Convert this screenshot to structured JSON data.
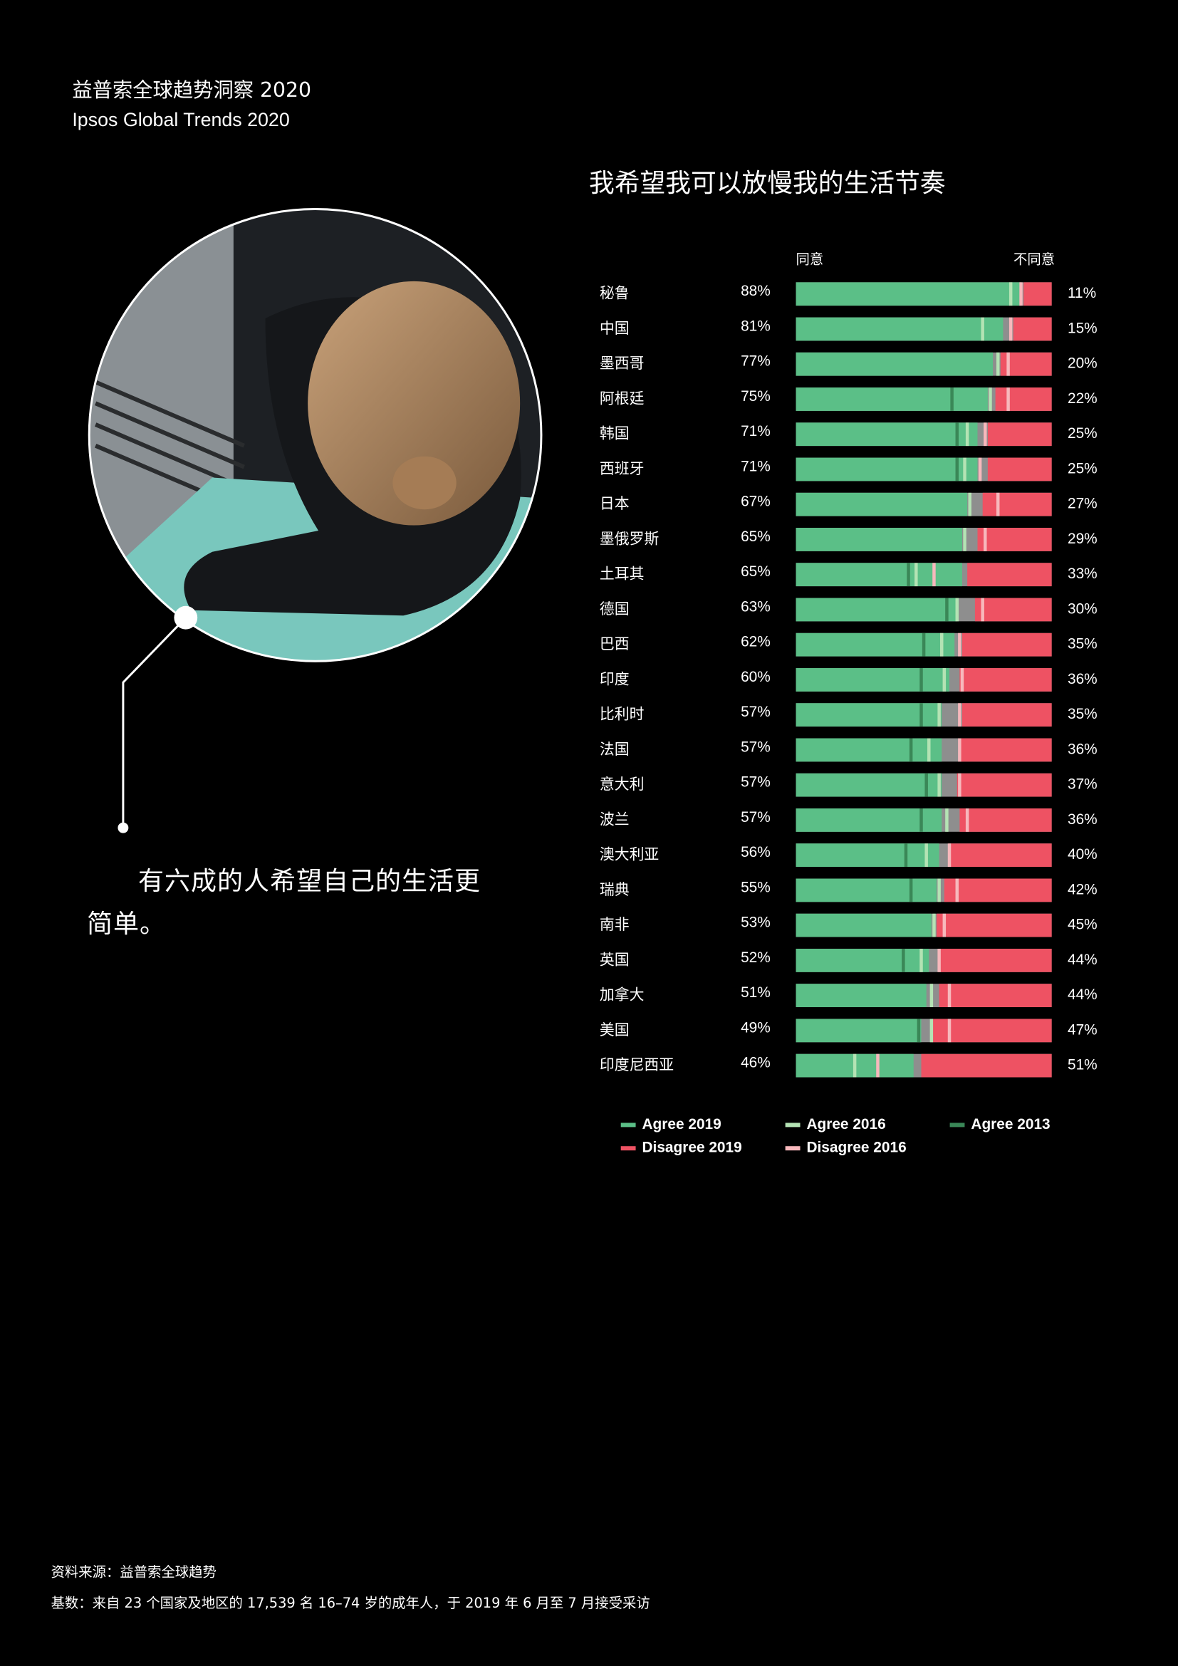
{
  "header": {
    "title": "益普索全球趋势洞察 2020",
    "subtitle": "Ipsos Global Trends 2020"
  },
  "quote": "有六成的人希望自己的生活更简单。",
  "footer": {
    "source": "资料来源：益普索全球趋势",
    "base": "基数：来自 23 个国家及地区的 17,539 名 16–74 岁的成年人，于 2019 年 6 月至 7 月接受采访"
  },
  "chart_data": {
    "type": "bar",
    "orientation": "horizontal",
    "title": "我希望我可以放慢我的生活节奏",
    "agree_label": "同意",
    "disagree_label": "不同意",
    "xlim": [
      0,
      100
    ],
    "categories": [
      "秘鲁",
      "中国",
      "墨西哥",
      "阿根廷",
      "韩国",
      "西班牙",
      "日本",
      "墨俄罗斯",
      "土耳其",
      "德国",
      "巴西",
      "印度",
      "比利时",
      "法国",
      "意大利",
      "波兰",
      "澳大利亚",
      "瑞典",
      "南非",
      "英国",
      "加拿大",
      "美国",
      "印度尼西亚"
    ],
    "series": [
      {
        "name": "Agree 2019",
        "color": "#5bbf87",
        "side": "left",
        "mark": "bar",
        "values": [
          88,
          81,
          77,
          75,
          71,
          71,
          67,
          65,
          65,
          63,
          62,
          60,
          57,
          57,
          57,
          57,
          56,
          55,
          53,
          52,
          51,
          49,
          46
        ],
        "value_labels": [
          "88%",
          "81%",
          "77%",
          "75%",
          "71%",
          "71%",
          "67%",
          "65%",
          "65%",
          "63%",
          "62%",
          "60%",
          "57%",
          "57%",
          "57%",
          "57%",
          "56%",
          "55%",
          "53%",
          "52%",
          "51%",
          "49%",
          "46%"
        ]
      },
      {
        "name": "Agree 2016",
        "color": "#b4e3b4",
        "side": "left",
        "mark": "tick",
        "values": [
          84,
          73,
          79,
          76,
          67,
          66,
          68,
          66,
          47,
          63,
          57,
          58,
          56,
          52,
          56,
          59,
          51,
          56,
          54,
          49,
          53,
          53,
          23
        ]
      },
      {
        "name": "Agree 2013",
        "color": "#3a8757",
        "side": "left",
        "mark": "tick",
        "values": [
          null,
          null,
          null,
          61,
          63,
          63,
          null,
          null,
          44,
          59,
          50,
          49,
          49,
          45,
          51,
          49,
          43,
          45,
          null,
          42,
          null,
          48,
          null
        ]
      },
      {
        "name": "Disagree 2019",
        "color": "#ee5263",
        "side": "right",
        "mark": "bar",
        "values": [
          11,
          15,
          20,
          22,
          25,
          25,
          27,
          29,
          33,
          30,
          35,
          36,
          35,
          36,
          37,
          36,
          40,
          42,
          45,
          44,
          44,
          47,
          51
        ],
        "value_labels": [
          "11%",
          "15%",
          "20%",
          "22%",
          "25%",
          "25%",
          "27%",
          "29%",
          "33%",
          "30%",
          "35%",
          "36%",
          "35%",
          "36%",
          "37%",
          "36%",
          "40%",
          "42%",
          "45%",
          "44%",
          "44%",
          "47%",
          "51%"
        ]
      },
      {
        "name": "Disagree 2016",
        "color": "#f7b8bc",
        "side": "right",
        "mark": "tick",
        "values": [
          12,
          16,
          17,
          17,
          26,
          28,
          21,
          26,
          46,
          27,
          36,
          35,
          36,
          36,
          36,
          33,
          40,
          37,
          42,
          44,
          40,
          40,
          68
        ]
      }
    ]
  }
}
